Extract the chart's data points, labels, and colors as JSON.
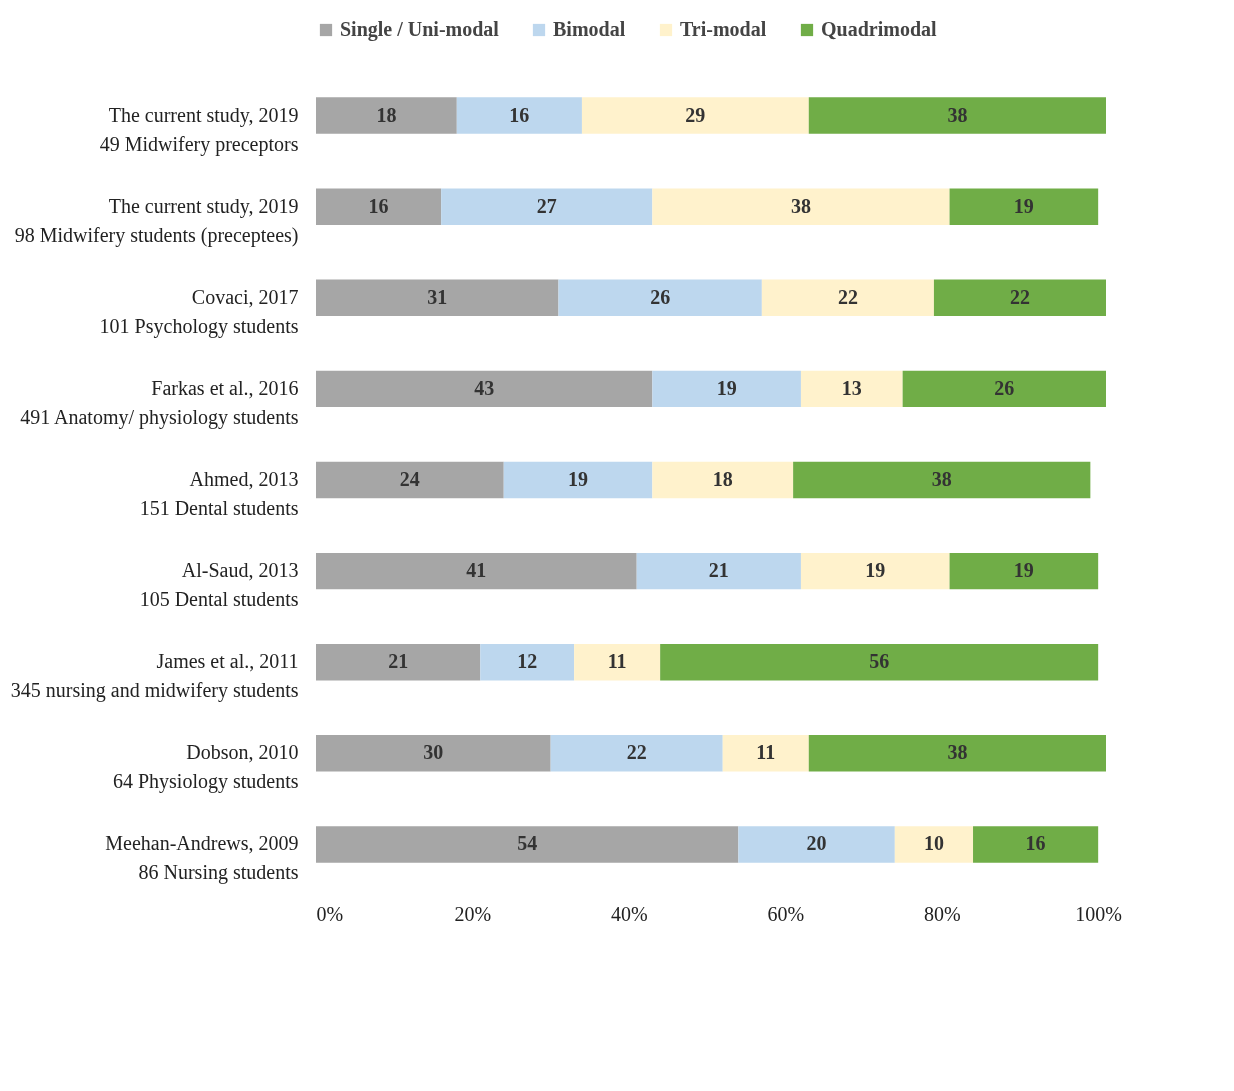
{
  "chart_data": {
    "type": "bar",
    "orientation": "horizontal",
    "stacked": true,
    "data_labels": true,
    "legend": "top",
    "categories": [
      "The current study, 2019\n49 Midwifery preceptors",
      "The current study, 2019\n98 Midwifery students (preceptees)",
      "Covaci, 2017\n101 Psychology students",
      "Farkas et al., 2016\n491 Anatomy/ physiology students",
      "Ahmed, 2013\n151 Dental students",
      "Al-Saud, 2013\n105 Dental students",
      "James et al., 2011\n345 nursing and midwifery students",
      "Dobson, 2010\n64 Physiology students",
      "Meehan-Andrews, 2009\n86 Nursing students"
    ],
    "series": [
      {
        "name": "Single / Uni-modal",
        "color": "#a6a6a6",
        "values": [
          18,
          16,
          31,
          43,
          24,
          41,
          21,
          30,
          54
        ]
      },
      {
        "name": "Bimodal",
        "color": "#bdd7ee",
        "values": [
          16,
          27,
          26,
          19,
          19,
          21,
          12,
          22,
          20
        ]
      },
      {
        "name": "Tri-modal",
        "color": "#fff2cc",
        "values": [
          29,
          38,
          22,
          13,
          18,
          19,
          11,
          11,
          10
        ]
      },
      {
        "name": "Quadrimodal",
        "color": "#70ad47",
        "values": [
          38,
          19,
          22,
          26,
          38,
          19,
          56,
          38,
          16
        ]
      }
    ],
    "xlim": [
      0,
      101
    ],
    "xticks": [
      {
        "value": 0,
        "label": "0%"
      },
      {
        "value": 20,
        "label": "20%"
      },
      {
        "value": 40,
        "label": "40%"
      },
      {
        "value": 60,
        "label": "60%"
      },
      {
        "value": 80,
        "label": "80%"
      },
      {
        "value": 100,
        "label": "100%"
      }
    ]
  }
}
